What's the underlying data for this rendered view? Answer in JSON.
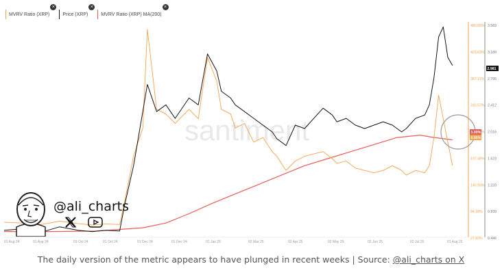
{
  "legend": {
    "items": [
      {
        "label": "MVRV Ratio (XRP)",
        "color": "#f4a24b"
      },
      {
        "label": "Price (XRP)",
        "color": "#111111"
      },
      {
        "label": "MVRV Ratio (XRP) MA(200)",
        "color": "#e85b55"
      }
    ]
  },
  "watermark": "santiment",
  "branding": {
    "handle": "@ali_charts"
  },
  "caption": {
    "text": "The daily version of the metric appears to have plunged in recent weeks | Source: ",
    "link": "@ali_charts on X"
  },
  "chart_data": {
    "type": "line",
    "x_tick_labels": [
      "01 Aug 24",
      "01 Aug 24",
      "01 Oct 24",
      "01 Oct 24",
      "01 Dec 24",
      "01 Dec 24",
      "01 Jan 25",
      "02 Mar 25",
      "02 Apr 25",
      "02 May 25",
      "02 Jun 25",
      "02 Jul 25",
      "01 Aug 25"
    ],
    "y_left_ticks": [
      "480.00%",
      "423.63%",
      "367.11%",
      "310.57%",
      "254.00%",
      "197.48%",
      "140.93%",
      "84.39%",
      "27.83%"
    ],
    "y_right_ticks": [
      "3.583",
      "3.189",
      "2.795",
      "2.412",
      "2.016",
      "1.623",
      "1.233",
      "0.839",
      "0.446"
    ],
    "left_ylim": [
      27.83,
      480.0
    ],
    "right_ylim": [
      0.446,
      3.583
    ],
    "current_labels": {
      "price": "2.981",
      "ma200": "1.00%",
      "mvrv": "0.86%"
    },
    "series": [
      {
        "name": "MVRV Ratio (XRP)",
        "axis": "left",
        "x": [
          0,
          0.04,
          0.08,
          0.12,
          0.16,
          0.19,
          0.22,
          0.25,
          0.26,
          0.28,
          0.3,
          0.31,
          0.33,
          0.35,
          0.37,
          0.4,
          0.42,
          0.44,
          0.46,
          0.47,
          0.49,
          0.5,
          0.52,
          0.54,
          0.56,
          0.58,
          0.59,
          0.61,
          0.63,
          0.65,
          0.67,
          0.69,
          0.71,
          0.72,
          0.74,
          0.76,
          0.78,
          0.8,
          0.82,
          0.84,
          0.86,
          0.87,
          0.89,
          0.91,
          0.92,
          0.93,
          0.94,
          0.95,
          0.96,
          0.97
        ],
        "values": [
          60,
          58,
          55,
          62,
          57,
          54,
          56,
          55,
          100,
          200,
          260,
          470,
          300,
          290,
          270,
          300,
          280,
          410,
          360,
          300,
          290,
          260,
          270,
          230,
          240,
          210,
          200,
          170,
          190,
          200,
          205,
          210,
          195,
          185,
          190,
          175,
          170,
          165,
          170,
          180,
          170,
          160,
          170,
          165,
          180,
          240,
          330,
          280,
          230,
          180
        ]
      },
      {
        "name": "Price (XRP)",
        "axis": "right",
        "x": [
          0,
          0.04,
          0.08,
          0.12,
          0.16,
          0.19,
          0.22,
          0.25,
          0.26,
          0.28,
          0.3,
          0.31,
          0.33,
          0.35,
          0.37,
          0.4,
          0.42,
          0.44,
          0.46,
          0.47,
          0.49,
          0.5,
          0.52,
          0.54,
          0.56,
          0.58,
          0.59,
          0.61,
          0.63,
          0.65,
          0.67,
          0.69,
          0.71,
          0.72,
          0.74,
          0.76,
          0.78,
          0.8,
          0.82,
          0.84,
          0.86,
          0.87,
          0.89,
          0.91,
          0.92,
          0.93,
          0.94,
          0.95,
          0.96,
          0.97
        ],
        "values": [
          0.55,
          0.57,
          0.52,
          0.6,
          0.55,
          0.53,
          0.55,
          0.54,
          0.9,
          1.5,
          2.3,
          2.7,
          2.3,
          2.4,
          2.2,
          2.5,
          2.4,
          3.15,
          2.9,
          2.6,
          2.5,
          2.4,
          2.3,
          2.2,
          2.1,
          2.0,
          1.9,
          1.8,
          2.1,
          2.05,
          2.2,
          2.35,
          2.25,
          2.15,
          2.2,
          2.1,
          2.05,
          2.1,
          2.15,
          2.1,
          2.0,
          2.05,
          2.2,
          2.25,
          2.4,
          2.8,
          3.4,
          3.55,
          3.1,
          2.98
        ]
      },
      {
        "name": "MVRV Ratio (XRP) MA(200)",
        "axis": "left",
        "x": [
          0,
          0.1,
          0.2,
          0.3,
          0.35,
          0.4,
          0.45,
          0.5,
          0.55,
          0.6,
          0.65,
          0.7,
          0.75,
          0.8,
          0.85,
          0.9,
          0.93,
          0.97
        ],
        "values": [
          40,
          40,
          41,
          48,
          58,
          78,
          100,
          120,
          140,
          160,
          180,
          195,
          210,
          225,
          240,
          245,
          240,
          235
        ]
      }
    ]
  }
}
